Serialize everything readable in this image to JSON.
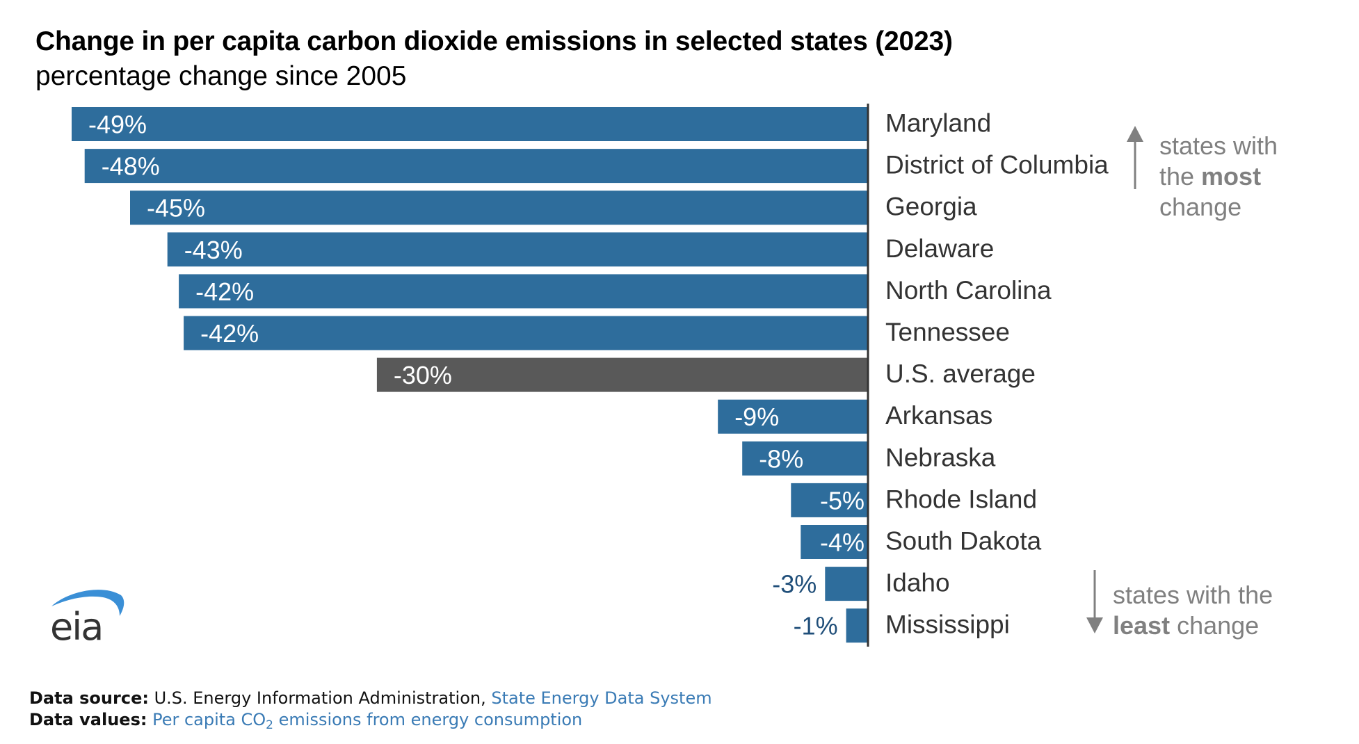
{
  "header": {
    "title": "Change in per capita carbon dioxide emissions in selected states (2023)",
    "subtitle": "percentage change since 2005"
  },
  "chart_data": {
    "type": "bar",
    "orientation": "horizontal",
    "title": "Change in per capita carbon dioxide emissions in selected states (2023)",
    "subtitle": "percentage change since 2005",
    "xlabel": "",
    "ylabel": "",
    "unit": "%",
    "xlim": [
      -49,
      0
    ],
    "grid": false,
    "categories": [
      "Maryland",
      "District of Columbia",
      "Georgia",
      "Delaware",
      "North Carolina",
      "Tennessee",
      "U.S. average",
      "Arkansas",
      "Nebraska",
      "Rhode Island",
      "South Dakota",
      "Idaho",
      "Mississippi"
    ],
    "values": [
      -49.0,
      -48.2,
      -45.4,
      -43.1,
      -42.4,
      -42.1,
      -30.2,
      -9.2,
      -7.7,
      -4.7,
      -4.1,
      -2.6,
      -1.3
    ],
    "labels": [
      "-49%",
      "-48%",
      "-45%",
      "-43%",
      "-42%",
      "-42%",
      "-30%",
      "-9%",
      "-8%",
      "-5%",
      "-4%",
      "-3%",
      "-1%"
    ],
    "highlight": [
      "",
      "",
      "",
      "",
      "",
      "",
      "average",
      "",
      "",
      "",
      "",
      "",
      ""
    ],
    "colors": {
      "state": "#2e6d9c",
      "average": "#595959",
      "label_inside": "#ffffff",
      "label_outside": "#1f4e79",
      "category": "#333333",
      "axis": "#333333"
    },
    "annotations": [
      {
        "text": "states with the most change",
        "direction": "up",
        "position": "top-right"
      },
      {
        "text": "states with the least change",
        "direction": "down",
        "position": "bottom-right"
      }
    ]
  },
  "legend": {
    "most": {
      "pre": "states with the ",
      "bold": "most",
      "post": " change"
    },
    "least": {
      "pre": "states with the ",
      "bold": "least",
      "post": " change"
    },
    "color": "#808080"
  },
  "footer": {
    "source_label": "Data source:",
    "source_text": "U.S. Energy Information Administration,",
    "source_link": "State Energy Data System",
    "values_label": "Data values:",
    "values_link_pre": "Per capita CO",
    "values_link_sub": "2",
    "values_link_post": " emissions from energy consumption",
    "link_color": "#3a7bb5"
  },
  "logo": {
    "text": "eia",
    "swoosh_color": "#3a8fd6",
    "text_color": "#333333"
  }
}
